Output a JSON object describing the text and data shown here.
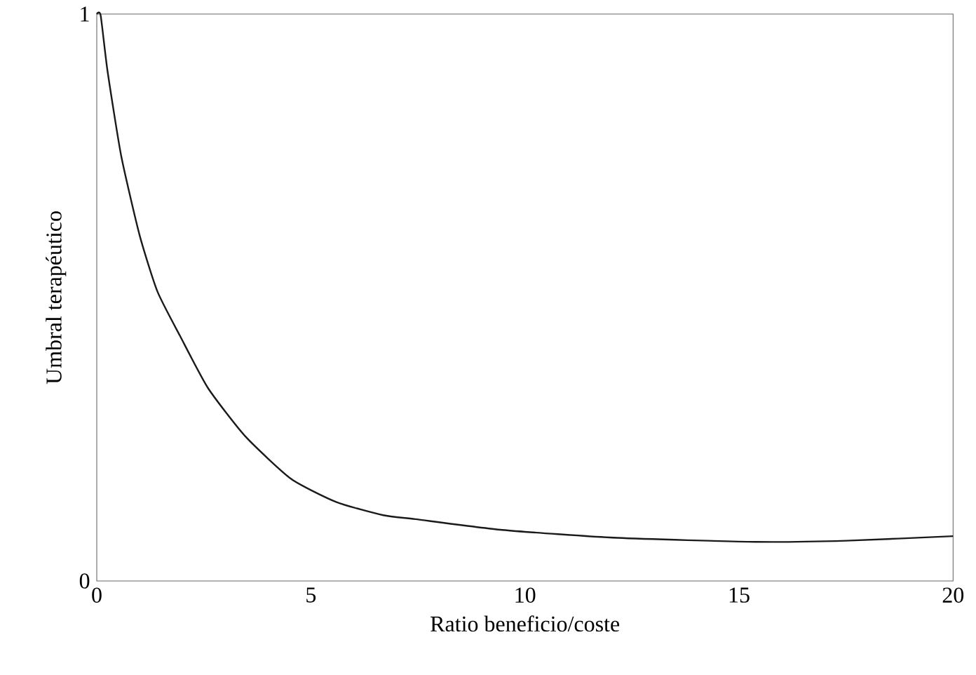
{
  "chart_data": {
    "type": "line",
    "xlabel": "Ratio beneficio/coste",
    "ylabel": "Umbral terapéutico",
    "x": [
      0,
      0.09,
      0.25,
      0.57,
      1.0,
      1.42,
      1.96,
      2.6,
      3.47,
      4.54,
      5.6,
      6.69,
      7.44,
      9.47,
      12.16,
      15.38,
      17.5,
      20
    ],
    "series": [
      {
        "color": "#1a1a1a",
        "values": [
          1,
          0.998,
          0.9,
          0.75,
          0.61,
          0.51,
          0.43,
          0.34,
          0.255,
          0.18,
          0.139,
          0.116,
          0.109,
          0.09,
          0.076,
          0.069,
          0.071,
          0.079
        ]
      }
    ],
    "xlim": [
      0,
      20
    ],
    "ylim": [
      0,
      1
    ],
    "xticks": [
      0,
      5,
      10,
      15,
      20
    ],
    "yticks": [
      0,
      1
    ],
    "grid": false,
    "marker": "none",
    "line_style": "solid"
  }
}
